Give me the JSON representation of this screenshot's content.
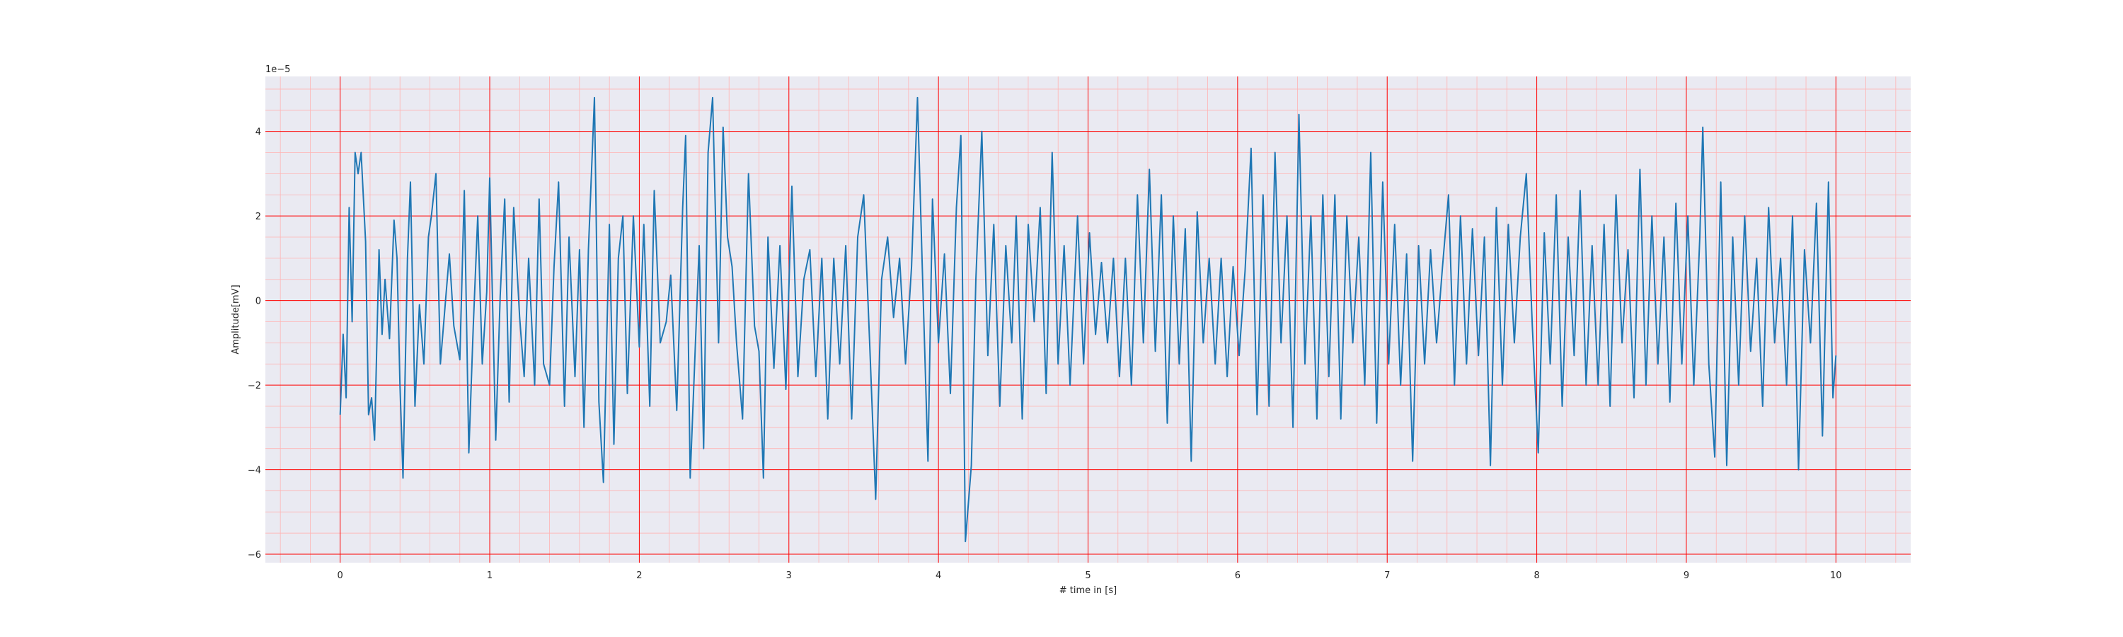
{
  "chart_data": {
    "type": "line",
    "title": "",
    "xlabel": "# time in [s]",
    "ylabel": "Amplitude[mV]",
    "y_offset_text": "1e−5",
    "xlim": [
      -0.5,
      10.5
    ],
    "ylim": [
      -6.2,
      5.3
    ],
    "x_ticks": [
      0,
      1,
      2,
      3,
      4,
      5,
      6,
      7,
      8,
      9,
      10
    ],
    "x_tick_labels": [
      "0",
      "1",
      "2",
      "3",
      "4",
      "5",
      "6",
      "7",
      "8",
      "9",
      "10"
    ],
    "y_ticks": [
      -6,
      -4,
      -2,
      0,
      2,
      4
    ],
    "y_tick_labels": [
      "−6",
      "−4",
      "−2",
      "0",
      "2",
      "4"
    ],
    "grid": true,
    "minor_grid": true,
    "colors": {
      "line": "#1f77b4",
      "background": "#eaeaf2",
      "major_grid": "#ff0000",
      "minor_grid": "#ffb3b3"
    },
    "series": [
      {
        "points": [
          [
            0.0,
            -2.7
          ],
          [
            0.02,
            -0.8
          ],
          [
            0.04,
            -2.3
          ],
          [
            0.06,
            2.2
          ],
          [
            0.08,
            -0.5
          ],
          [
            0.1,
            3.5
          ],
          [
            0.12,
            3.0
          ],
          [
            0.14,
            3.5
          ],
          [
            0.17,
            1.4
          ],
          [
            0.19,
            -2.7
          ],
          [
            0.21,
            -2.3
          ],
          [
            0.23,
            -3.3
          ],
          [
            0.26,
            1.2
          ],
          [
            0.28,
            -0.8
          ],
          [
            0.3,
            0.5
          ],
          [
            0.33,
            -0.9
          ],
          [
            0.36,
            1.9
          ],
          [
            0.38,
            1.0
          ],
          [
            0.4,
            -2.0
          ],
          [
            0.42,
            -4.2
          ],
          [
            0.45,
            1.0
          ],
          [
            0.47,
            2.8
          ],
          [
            0.5,
            -2.5
          ],
          [
            0.53,
            -0.1
          ],
          [
            0.56,
            -1.5
          ],
          [
            0.59,
            1.5
          ],
          [
            0.61,
            2.0
          ],
          [
            0.64,
            3.0
          ],
          [
            0.67,
            -1.5
          ],
          [
            0.7,
            -0.2
          ],
          [
            0.73,
            1.1
          ],
          [
            0.76,
            -0.6
          ],
          [
            0.8,
            -1.4
          ],
          [
            0.83,
            2.6
          ],
          [
            0.86,
            -3.6
          ],
          [
            0.89,
            -0.6
          ],
          [
            0.92,
            2.0
          ],
          [
            0.95,
            -1.5
          ],
          [
            0.98,
            0.2
          ],
          [
            1.0,
            2.9
          ],
          [
            1.04,
            -3.3
          ],
          [
            1.07,
            0.1
          ],
          [
            1.1,
            2.4
          ],
          [
            1.13,
            -2.4
          ],
          [
            1.16,
            2.2
          ],
          [
            1.2,
            -0.4
          ],
          [
            1.23,
            -1.8
          ],
          [
            1.26,
            1.0
          ],
          [
            1.3,
            -2.0
          ],
          [
            1.33,
            2.4
          ],
          [
            1.36,
            -1.5
          ],
          [
            1.4,
            -2.0
          ],
          [
            1.43,
            0.8
          ],
          [
            1.46,
            2.8
          ],
          [
            1.5,
            -2.5
          ],
          [
            1.53,
            1.5
          ],
          [
            1.57,
            -1.8
          ],
          [
            1.6,
            1.2
          ],
          [
            1.63,
            -3.0
          ],
          [
            1.66,
            1.2
          ],
          [
            1.7,
            4.8
          ],
          [
            1.73,
            -2.4
          ],
          [
            1.76,
            -4.3
          ],
          [
            1.8,
            1.8
          ],
          [
            1.83,
            -3.4
          ],
          [
            1.86,
            1.0
          ],
          [
            1.89,
            2.0
          ],
          [
            1.92,
            -2.2
          ],
          [
            1.96,
            2.0
          ],
          [
            2.0,
            -1.1
          ],
          [
            2.03,
            1.8
          ],
          [
            2.07,
            -2.5
          ],
          [
            2.1,
            2.6
          ],
          [
            2.14,
            -1.0
          ],
          [
            2.18,
            -0.5
          ],
          [
            2.21,
            0.6
          ],
          [
            2.25,
            -2.6
          ],
          [
            2.29,
            2.2
          ],
          [
            2.31,
            3.9
          ],
          [
            2.34,
            -4.2
          ],
          [
            2.37,
            -1.5
          ],
          [
            2.4,
            1.3
          ],
          [
            2.43,
            -3.5
          ],
          [
            2.46,
            3.5
          ],
          [
            2.49,
            4.8
          ],
          [
            2.53,
            -1.0
          ],
          [
            2.56,
            4.1
          ],
          [
            2.59,
            1.5
          ],
          [
            2.62,
            0.8
          ],
          [
            2.65,
            -1.0
          ],
          [
            2.69,
            -2.8
          ],
          [
            2.73,
            3.0
          ],
          [
            2.77,
            -0.6
          ],
          [
            2.8,
            -1.2
          ],
          [
            2.83,
            -4.2
          ],
          [
            2.86,
            1.5
          ],
          [
            2.9,
            -1.6
          ],
          [
            2.94,
            1.3
          ],
          [
            2.98,
            -2.1
          ],
          [
            3.02,
            2.7
          ],
          [
            3.06,
            -1.8
          ],
          [
            3.1,
            0.5
          ],
          [
            3.14,
            1.2
          ],
          [
            3.18,
            -1.8
          ],
          [
            3.22,
            1.0
          ],
          [
            3.26,
            -2.8
          ],
          [
            3.3,
            1.0
          ],
          [
            3.34,
            -1.5
          ],
          [
            3.38,
            1.3
          ],
          [
            3.42,
            -2.8
          ],
          [
            3.46,
            1.5
          ],
          [
            3.5,
            2.5
          ],
          [
            3.54,
            -1.0
          ],
          [
            3.58,
            -4.7
          ],
          [
            3.62,
            0.5
          ],
          [
            3.66,
            1.5
          ],
          [
            3.7,
            -0.4
          ],
          [
            3.74,
            1.0
          ],
          [
            3.78,
            -1.5
          ],
          [
            3.82,
            0.8
          ],
          [
            3.86,
            4.8
          ],
          [
            3.89,
            1.0
          ],
          [
            3.93,
            -3.8
          ],
          [
            3.96,
            2.4
          ],
          [
            4.0,
            -1.0
          ],
          [
            4.04,
            1.1
          ],
          [
            4.08,
            -2.2
          ],
          [
            4.12,
            2.2
          ],
          [
            4.15,
            3.9
          ],
          [
            4.18,
            -5.7
          ],
          [
            4.22,
            -3.9
          ],
          [
            4.25,
            0.5
          ],
          [
            4.29,
            4.0
          ],
          [
            4.33,
            -1.3
          ],
          [
            4.37,
            1.8
          ],
          [
            4.41,
            -2.5
          ],
          [
            4.45,
            1.3
          ],
          [
            4.49,
            -1.0
          ],
          [
            4.52,
            2.0
          ],
          [
            4.56,
            -2.8
          ],
          [
            4.6,
            1.8
          ],
          [
            4.64,
            -0.5
          ],
          [
            4.68,
            2.2
          ],
          [
            4.72,
            -2.2
          ],
          [
            4.76,
            3.5
          ],
          [
            4.8,
            -1.5
          ],
          [
            4.84,
            1.3
          ],
          [
            4.88,
            -2.0
          ],
          [
            4.93,
            2.0
          ],
          [
            4.97,
            -1.5
          ],
          [
            5.01,
            1.6
          ],
          [
            5.05,
            -0.8
          ],
          [
            5.09,
            0.9
          ],
          [
            5.13,
            -1.0
          ],
          [
            5.17,
            1.0
          ],
          [
            5.21,
            -1.8
          ],
          [
            5.25,
            1.0
          ],
          [
            5.29,
            -2.0
          ],
          [
            5.33,
            2.5
          ],
          [
            5.37,
            -1.0
          ],
          [
            5.41,
            3.1
          ],
          [
            5.45,
            -1.2
          ],
          [
            5.49,
            2.5
          ],
          [
            5.53,
            -2.9
          ],
          [
            5.57,
            2.0
          ],
          [
            5.61,
            -1.5
          ],
          [
            5.65,
            1.7
          ],
          [
            5.69,
            -3.8
          ],
          [
            5.73,
            2.1
          ],
          [
            5.77,
            -1.0
          ],
          [
            5.81,
            1.0
          ],
          [
            5.85,
            -1.5
          ],
          [
            5.89,
            1.0
          ],
          [
            5.93,
            -1.8
          ],
          [
            5.97,
            0.8
          ],
          [
            6.01,
            -1.3
          ],
          [
            6.05,
            0.7
          ],
          [
            6.09,
            3.6
          ],
          [
            6.13,
            -2.7
          ],
          [
            6.17,
            2.5
          ],
          [
            6.21,
            -2.5
          ],
          [
            6.25,
            3.5
          ],
          [
            6.29,
            -1.0
          ],
          [
            6.33,
            2.0
          ],
          [
            6.37,
            -3.0
          ],
          [
            6.41,
            4.4
          ],
          [
            6.45,
            -1.5
          ],
          [
            6.49,
            2.0
          ],
          [
            6.53,
            -2.8
          ],
          [
            6.57,
            2.5
          ],
          [
            6.61,
            -1.8
          ],
          [
            6.65,
            2.5
          ],
          [
            6.69,
            -2.8
          ],
          [
            6.73,
            2.0
          ],
          [
            6.77,
            -1.0
          ],
          [
            6.81,
            1.5
          ],
          [
            6.85,
            -2.0
          ],
          [
            6.89,
            3.5
          ],
          [
            6.93,
            -2.9
          ],
          [
            6.97,
            2.8
          ],
          [
            7.01,
            -1.5
          ],
          [
            7.05,
            1.8
          ],
          [
            7.09,
            -2.0
          ],
          [
            7.13,
            1.1
          ],
          [
            7.17,
            -3.8
          ],
          [
            7.21,
            1.3
          ],
          [
            7.25,
            -1.5
          ],
          [
            7.29,
            1.2
          ],
          [
            7.33,
            -1.0
          ],
          [
            7.37,
            0.8
          ],
          [
            7.41,
            2.5
          ],
          [
            7.45,
            -2.0
          ],
          [
            7.49,
            2.0
          ],
          [
            7.53,
            -1.5
          ],
          [
            7.57,
            1.7
          ],
          [
            7.61,
            -1.3
          ],
          [
            7.65,
            1.5
          ],
          [
            7.69,
            -3.9
          ],
          [
            7.73,
            2.2
          ],
          [
            7.77,
            -2.0
          ],
          [
            7.81,
            1.8
          ],
          [
            7.85,
            -1.0
          ],
          [
            7.89,
            1.5
          ],
          [
            7.93,
            3.0
          ],
          [
            7.97,
            -0.6
          ],
          [
            8.01,
            -3.6
          ],
          [
            8.05,
            1.6
          ],
          [
            8.09,
            -1.5
          ],
          [
            8.13,
            2.5
          ],
          [
            8.17,
            -2.5
          ],
          [
            8.21,
            1.5
          ],
          [
            8.25,
            -1.3
          ],
          [
            8.29,
            2.6
          ],
          [
            8.33,
            -2.0
          ],
          [
            8.37,
            1.3
          ],
          [
            8.41,
            -2.0
          ],
          [
            8.45,
            1.8
          ],
          [
            8.49,
            -2.5
          ],
          [
            8.53,
            2.5
          ],
          [
            8.57,
            -1.0
          ],
          [
            8.61,
            1.2
          ],
          [
            8.65,
            -2.3
          ],
          [
            8.69,
            3.1
          ],
          [
            8.73,
            -2.0
          ],
          [
            8.77,
            2.0
          ],
          [
            8.81,
            -1.5
          ],
          [
            8.85,
            1.5
          ],
          [
            8.89,
            -2.4
          ],
          [
            8.93,
            2.3
          ],
          [
            8.97,
            -1.5
          ],
          [
            9.01,
            2.0
          ],
          [
            9.05,
            -2.0
          ],
          [
            9.09,
            1.5
          ],
          [
            9.11,
            4.1
          ],
          [
            9.15,
            -1.5
          ],
          [
            9.19,
            -3.7
          ],
          [
            9.23,
            2.8
          ],
          [
            9.27,
            -3.9
          ],
          [
            9.31,
            1.5
          ],
          [
            9.35,
            -2.0
          ],
          [
            9.39,
            2.0
          ],
          [
            9.43,
            -1.2
          ],
          [
            9.47,
            1.0
          ],
          [
            9.51,
            -2.5
          ],
          [
            9.55,
            2.2
          ],
          [
            9.59,
            -1.0
          ],
          [
            9.63,
            1.0
          ],
          [
            9.67,
            -2.0
          ],
          [
            9.71,
            2.0
          ],
          [
            9.75,
            -4.0
          ],
          [
            9.79,
            1.2
          ],
          [
            9.83,
            -1.0
          ],
          [
            9.87,
            2.3
          ],
          [
            9.91,
            -3.2
          ],
          [
            9.95,
            2.8
          ],
          [
            9.98,
            -2.3
          ],
          [
            10.0,
            -1.3
          ]
        ]
      }
    ]
  }
}
